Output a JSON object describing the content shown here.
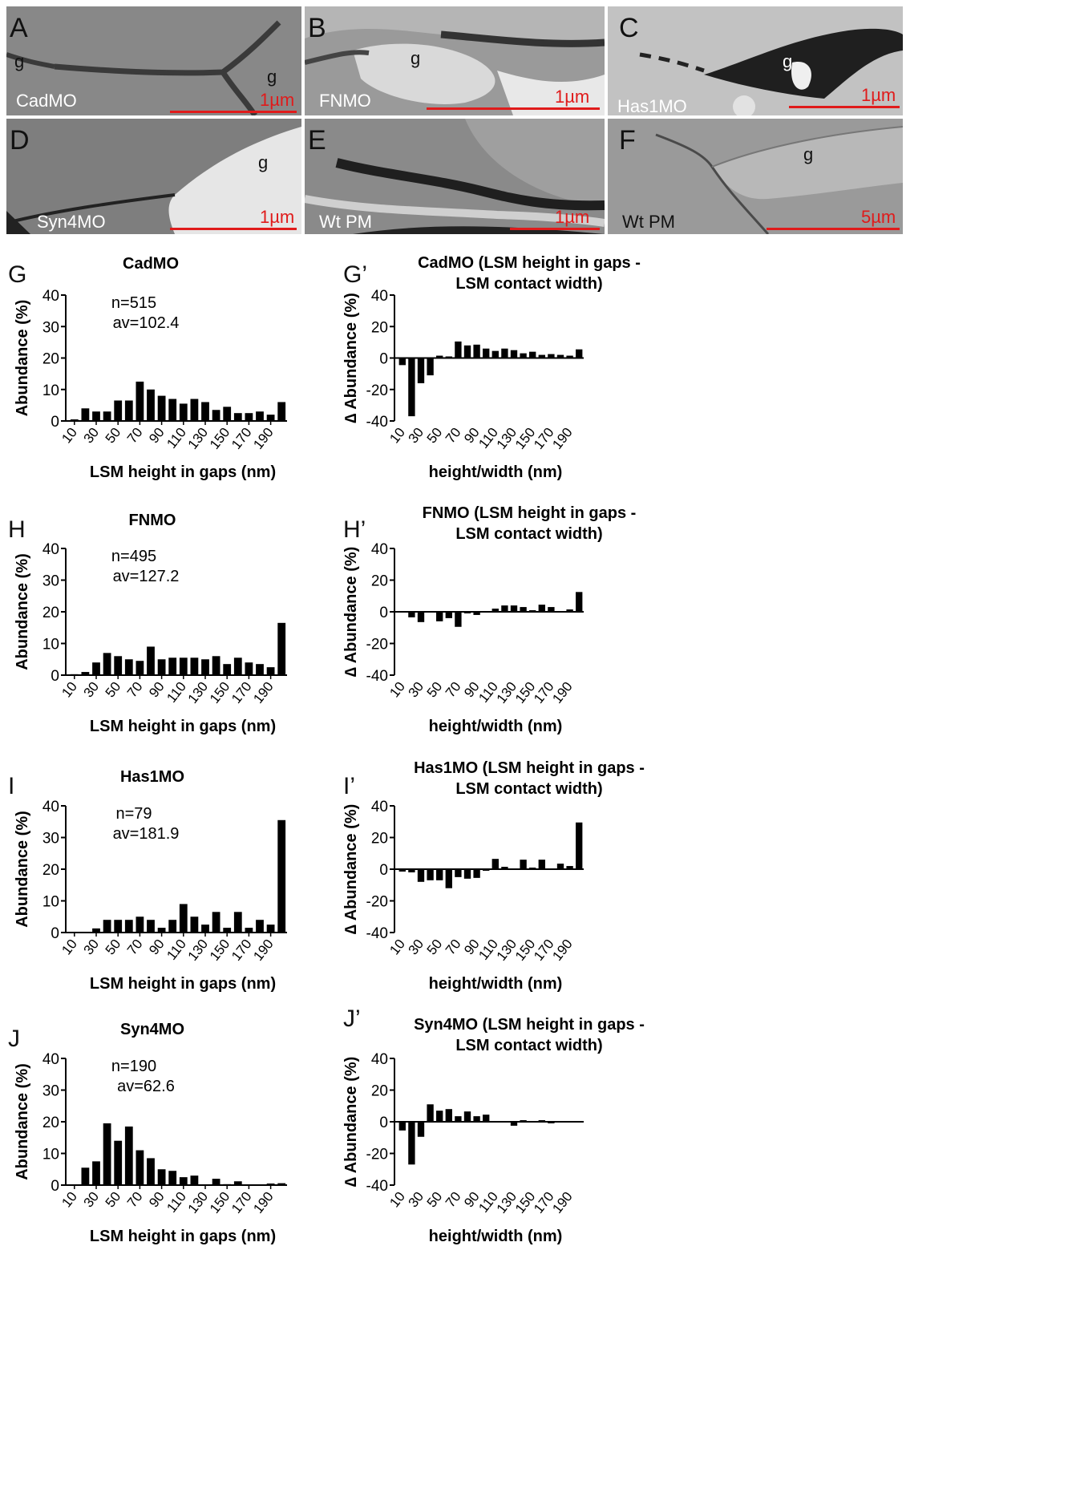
{
  "image_panels": [
    {
      "letter": "A",
      "condition": "CadMO",
      "scale": "1µm",
      "g_marks": [
        "g",
        "g"
      ]
    },
    {
      "letter": "B",
      "condition": "FNMO",
      "scale": "1µm",
      "g_marks": [
        "g"
      ]
    },
    {
      "letter": "C",
      "condition": "Has1MO",
      "scale": "1µm",
      "g_marks": [
        "g"
      ]
    },
    {
      "letter": "D",
      "condition": "Syn4MO",
      "scale": "1µm",
      "g_marks": [
        "g"
      ]
    },
    {
      "letter": "E",
      "condition": "Wt PM",
      "scale": "1µm",
      "g_marks": []
    },
    {
      "letter": "F",
      "condition": "Wt PM",
      "scale": "5µm",
      "g_marks": [
        "g"
      ]
    }
  ],
  "chart_data": [
    {
      "type": "bar",
      "letter": "G",
      "title": "CadMO",
      "n_text": "n=515",
      "av_text": "av=102.4",
      "categories": [
        "10",
        "20",
        "30",
        "40",
        "50",
        "60",
        "70",
        "80",
        "90",
        "100",
        "110",
        "120",
        "130",
        "140",
        "150",
        "160",
        "170",
        "180",
        "190",
        "200"
      ],
      "tick_labels": [
        "10",
        "30",
        "50",
        "70",
        "90",
        "110",
        "130",
        "150",
        "170",
        "190"
      ],
      "values": [
        0.5,
        4,
        3,
        3,
        6.5,
        6.5,
        12.5,
        10,
        8,
        7,
        5.5,
        7,
        6,
        3.5,
        4.5,
        2.5,
        2.5,
        3,
        2,
        6
      ],
      "xlabel": "LSM height in gaps (nm)",
      "ylabel": "Abundance (%)",
      "ylim": [
        0,
        40
      ],
      "yticks": [
        "0",
        "10",
        "20",
        "30",
        "40"
      ]
    },
    {
      "type": "bar",
      "letter": "G’",
      "title": "CadMO (LSM height in gaps -",
      "title2": "LSM contact width)",
      "categories": [
        "10",
        "20",
        "30",
        "40",
        "50",
        "60",
        "70",
        "80",
        "90",
        "100",
        "110",
        "120",
        "130",
        "140",
        "150",
        "160",
        "170",
        "180",
        "190",
        "200"
      ],
      "tick_labels": [
        "10",
        "30",
        "50",
        "70",
        "90",
        "110",
        "130",
        "150",
        "170",
        "190"
      ],
      "values": [
        -4.5,
        -37,
        -16,
        -11,
        1.5,
        1,
        10.5,
        8,
        8.5,
        6,
        4.5,
        6,
        5,
        3,
        4,
        2,
        2.5,
        2,
        1.5,
        5.5
      ],
      "xlabel": "height/width (nm)",
      "ylabel": "∆ Abundance (%)",
      "ylim": [
        -40,
        40
      ],
      "yticks": [
        "-40",
        "-20",
        "0",
        "20",
        "40"
      ]
    },
    {
      "type": "bar",
      "letter": "H",
      "title": "FNMO",
      "n_text": "n=495",
      "av_text": "av=127.2",
      "categories": [
        "10",
        "20",
        "30",
        "40",
        "50",
        "60",
        "70",
        "80",
        "90",
        "100",
        "110",
        "120",
        "130",
        "140",
        "150",
        "160",
        "170",
        "180",
        "190",
        "200"
      ],
      "tick_labels": [
        "10",
        "30",
        "50",
        "70",
        "90",
        "110",
        "130",
        "150",
        "170",
        "190"
      ],
      "values": [
        0.3,
        1,
        4,
        7,
        6,
        5,
        4.5,
        9,
        5,
        5.5,
        5.5,
        5.5,
        5,
        6,
        3.5,
        5.5,
        4,
        3.5,
        2.5,
        16.5
      ],
      "xlabel": "LSM height in gaps (nm)",
      "ylabel": "Abundance (%)",
      "ylim": [
        0,
        40
      ],
      "yticks": [
        "0",
        "10",
        "20",
        "30",
        "40"
      ]
    },
    {
      "type": "bar",
      "letter": "H’",
      "title": "FNMO (LSM height in gaps -",
      "title2": "LSM contact width)",
      "categories": [
        "10",
        "20",
        "30",
        "40",
        "50",
        "60",
        "70",
        "80",
        "90",
        "100",
        "110",
        "120",
        "130",
        "140",
        "150",
        "160",
        "170",
        "180",
        "190",
        "200"
      ],
      "tick_labels": [
        "10",
        "30",
        "50",
        "70",
        "90",
        "110",
        "130",
        "150",
        "170",
        "190"
      ],
      "values": [
        0.5,
        -3.5,
        -6.5,
        0.5,
        -6,
        -4,
        -9.5,
        -1,
        -2,
        0.5,
        2,
        4,
        4,
        3,
        1,
        4.5,
        3,
        0.5,
        1.5,
        12.5
      ],
      "xlabel": "height/width (nm)",
      "ylabel": "∆ Abundance (%)",
      "ylim": [
        -40,
        40
      ],
      "yticks": [
        "-40",
        "-20",
        "0",
        "20",
        "40"
      ]
    },
    {
      "type": "bar",
      "letter": "I",
      "title": "Has1MO",
      "n_text": "n=79",
      "av_text": "av=181.9",
      "categories": [
        "10",
        "20",
        "30",
        "40",
        "50",
        "60",
        "70",
        "80",
        "90",
        "100",
        "110",
        "120",
        "130",
        "140",
        "150",
        "160",
        "170",
        "180",
        "190",
        "200"
      ],
      "tick_labels": [
        "10",
        "30",
        "50",
        "70",
        "90",
        "110",
        "130",
        "150",
        "170",
        "190"
      ],
      "values": [
        0,
        0,
        1.3,
        4,
        4,
        4,
        5,
        4,
        1.5,
        4,
        9,
        5,
        2.5,
        6.5,
        1.5,
        6.5,
        1.5,
        4,
        2.5,
        35.5
      ],
      "xlabel": "LSM height in gaps (nm)",
      "ylabel": "Abundance (%)",
      "ylim": [
        0,
        40
      ],
      "yticks": [
        "0",
        "10",
        "20",
        "30",
        "40"
      ]
    },
    {
      "type": "bar",
      "letter": "I’",
      "title": "Has1MO (LSM height in gaps -",
      "title2": "LSM contact width)",
      "categories": [
        "10",
        "20",
        "30",
        "40",
        "50",
        "60",
        "70",
        "80",
        "90",
        "100",
        "110",
        "120",
        "130",
        "140",
        "150",
        "160",
        "170",
        "180",
        "190",
        "200"
      ],
      "tick_labels": [
        "10",
        "30",
        "50",
        "70",
        "90",
        "110",
        "130",
        "150",
        "170",
        "190"
      ],
      "values": [
        -1.5,
        -2,
        -8,
        -7,
        -7,
        -12,
        -5,
        -6,
        -5.5,
        -1,
        6.5,
        1.5,
        0.5,
        6,
        1,
        6,
        0.5,
        3.5,
        2,
        29.5
      ],
      "xlabel": "height/width (nm)",
      "ylabel": "∆ Abundance (%)",
      "ylim": [
        -40,
        40
      ],
      "yticks": [
        "-40",
        "-20",
        "0",
        "20",
        "40"
      ]
    },
    {
      "type": "bar",
      "letter": "J",
      "title": "Syn4MO",
      "n_text": "n=190",
      "av_text": "av=62.6",
      "categories": [
        "10",
        "20",
        "30",
        "40",
        "50",
        "60",
        "70",
        "80",
        "90",
        "100",
        "110",
        "120",
        "130",
        "140",
        "150",
        "160",
        "170",
        "180",
        "190",
        "200"
      ],
      "tick_labels": [
        "10",
        "30",
        "50",
        "70",
        "90",
        "110",
        "130",
        "150",
        "170",
        "190"
      ],
      "values": [
        0,
        5.5,
        7.5,
        19.5,
        14,
        18.5,
        11,
        8.5,
        5,
        4.5,
        2.5,
        3,
        0,
        2,
        0.3,
        1.2,
        0,
        0,
        0.5,
        0.6
      ],
      "xlabel": "LSM height in gaps (nm)",
      "ylabel": "Abundance (%)",
      "ylim": [
        0,
        40
      ],
      "yticks": [
        "0",
        "10",
        "20",
        "30",
        "40"
      ]
    },
    {
      "type": "bar",
      "letter": "J’",
      "title": "Syn4MO (LSM height in gaps -",
      "title2": "LSM contact width)",
      "categories": [
        "10",
        "20",
        "30",
        "40",
        "50",
        "60",
        "70",
        "80",
        "90",
        "100",
        "110",
        "120",
        "130",
        "140",
        "150",
        "160",
        "170",
        "180",
        "190",
        "200"
      ],
      "tick_labels": [
        "10",
        "30",
        "50",
        "70",
        "90",
        "110",
        "130",
        "150",
        "170",
        "190"
      ],
      "values": [
        -5.5,
        -27,
        -9.5,
        11,
        7,
        8,
        3.5,
        6.5,
        3.5,
        4.5,
        -0.5,
        -0.5,
        -2.5,
        1,
        0,
        1,
        -1,
        0,
        -0.5,
        -0.5
      ],
      "xlabel": "height/width (nm)",
      "ylabel": "∆ Abundance (%)",
      "ylim": [
        -40,
        40
      ],
      "yticks": [
        "-40",
        "-20",
        "0",
        "20",
        "40"
      ]
    }
  ]
}
